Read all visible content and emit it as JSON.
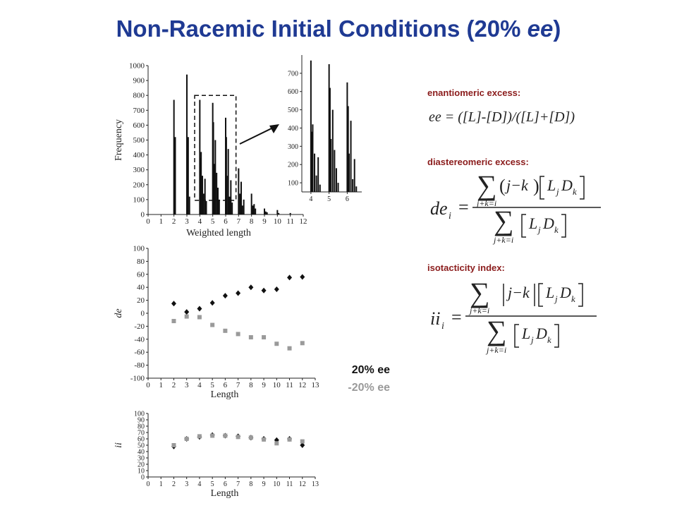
{
  "title": {
    "prefix": "Non-Racemic Initial Conditions (20% ",
    "italic": "ee",
    "suffix": ")"
  },
  "side": {
    "ee_label": "enantiomeric excess:",
    "ee_formula": "ee = ([L]-[D])/([L]+[D])",
    "de_label": "diastereomeric excess:",
    "ii_label": "isotacticity index:"
  },
  "legend": {
    "pos": "20% ee",
    "neg": "-20% ee",
    "pos_color": "#111111",
    "neg_color": "#9a9a9a"
  },
  "chart_data": [
    {
      "id": "histogram",
      "type": "bar",
      "xlabel": "Weighted length",
      "ylabel": "Frequency",
      "xlim": [
        0,
        12
      ],
      "ylim": [
        0,
        1000
      ],
      "xticks": [
        "0",
        "1",
        "2",
        "3",
        "4",
        "5",
        "6",
        "7",
        "8",
        "9",
        "10",
        "11",
        "12"
      ],
      "yticks": [
        "0",
        "100",
        "200",
        "300",
        "400",
        "500",
        "600",
        "700",
        "800",
        "900",
        "1000"
      ],
      "color": "#111111",
      "x": [
        2.0,
        2.1,
        3.0,
        3.1,
        3.2,
        4.0,
        4.05,
        4.1,
        4.2,
        4.3,
        4.4,
        4.5,
        5.0,
        5.05,
        5.1,
        5.2,
        5.3,
        5.4,
        5.5,
        6.0,
        6.05,
        6.1,
        6.2,
        6.3,
        6.4,
        6.5,
        7.0,
        7.1,
        7.2,
        7.3,
        7.4,
        8.0,
        8.1,
        8.2,
        8.3,
        9.0,
        9.1,
        9.2,
        10.0,
        10.1,
        11.0
      ],
      "values": [
        770,
        520,
        940,
        520,
        120,
        770,
        380,
        420,
        260,
        140,
        240,
        90,
        750,
        620,
        340,
        500,
        280,
        180,
        100,
        650,
        520,
        260,
        440,
        120,
        230,
        80,
        310,
        140,
        220,
        60,
        100,
        140,
        60,
        70,
        40,
        40,
        20,
        15,
        30,
        10,
        10
      ],
      "zoom_box_x": [
        3.6,
        6.8
      ],
      "zoom_box_y": [
        95,
        800
      ]
    },
    {
      "id": "histogram-inset",
      "type": "bar",
      "xlim": [
        3.5,
        6.8
      ],
      "ylim": [
        50,
        800
      ],
      "xticks": [
        "4",
        "5",
        "6"
      ],
      "yticks": [
        "100",
        "200",
        "300",
        "400",
        "500",
        "600",
        "700"
      ],
      "color": "#111111",
      "x": [
        4.0,
        4.05,
        4.1,
        4.2,
        4.3,
        4.4,
        4.5,
        5.0,
        5.05,
        5.1,
        5.2,
        5.3,
        5.4,
        5.5,
        6.0,
        6.05,
        6.1,
        6.2,
        6.3,
        6.4,
        6.5
      ],
      "values": [
        770,
        380,
        420,
        260,
        140,
        240,
        90,
        750,
        620,
        340,
        500,
        280,
        180,
        100,
        650,
        520,
        260,
        440,
        120,
        230,
        80
      ]
    },
    {
      "id": "de-scatter",
      "type": "scatter",
      "xlabel": "Length",
      "ylabel": "de",
      "xlim": [
        0,
        13
      ],
      "ylim": [
        -100,
        100
      ],
      "xticks": [
        "0",
        "1",
        "2",
        "3",
        "4",
        "5",
        "6",
        "7",
        "8",
        "9",
        "10",
        "11",
        "12",
        "13"
      ],
      "yticks": [
        "-100",
        "-80",
        "-60",
        "-40",
        "-20",
        "0",
        "20",
        "40",
        "60",
        "80",
        "100"
      ],
      "series": [
        {
          "name": "20% ee",
          "marker": "diamond",
          "color": "#111111",
          "x": [
            2,
            3,
            4,
            5,
            6,
            7,
            8,
            9,
            10,
            11,
            12
          ],
          "y": [
            15,
            2,
            7,
            16,
            27,
            31,
            40,
            35,
            37,
            55,
            56
          ]
        },
        {
          "name": "-20% ee",
          "marker": "square",
          "color": "#9a9a9a",
          "x": [
            2,
            3,
            4,
            5,
            6,
            7,
            8,
            9,
            10,
            11,
            12
          ],
          "y": [
            -12,
            -5,
            -6,
            -18,
            -27,
            -32,
            -37,
            -37,
            -47,
            -54,
            -46
          ]
        }
      ]
    },
    {
      "id": "ii-scatter",
      "type": "scatter",
      "xlabel": "Length",
      "ylabel": "ii",
      "xlim": [
        0,
        13
      ],
      "ylim": [
        0,
        100
      ],
      "xticks": [
        "0",
        "1",
        "2",
        "3",
        "4",
        "5",
        "6",
        "7",
        "8",
        "9",
        "10",
        "11",
        "12",
        "13"
      ],
      "yticks": [
        "0",
        "10",
        "20",
        "30",
        "40",
        "50",
        "60",
        "70",
        "80",
        "90",
        "100"
      ],
      "series": [
        {
          "name": "20% ee",
          "marker": "diamond",
          "color": "#111111",
          "x": [
            2,
            3,
            4,
            5,
            6,
            7,
            8,
            9,
            10,
            11,
            12
          ],
          "y": [
            48,
            60,
            63,
            66,
            65,
            64,
            62,
            60,
            58,
            60,
            50
          ]
        },
        {
          "name": "-20% ee",
          "marker": "square",
          "color": "#9a9a9a",
          "x": [
            2,
            3,
            4,
            5,
            6,
            7,
            8,
            9,
            10,
            11,
            12
          ],
          "y": [
            50,
            60,
            64,
            65,
            65,
            63,
            62,
            59,
            53,
            59,
            56
          ]
        }
      ]
    }
  ]
}
